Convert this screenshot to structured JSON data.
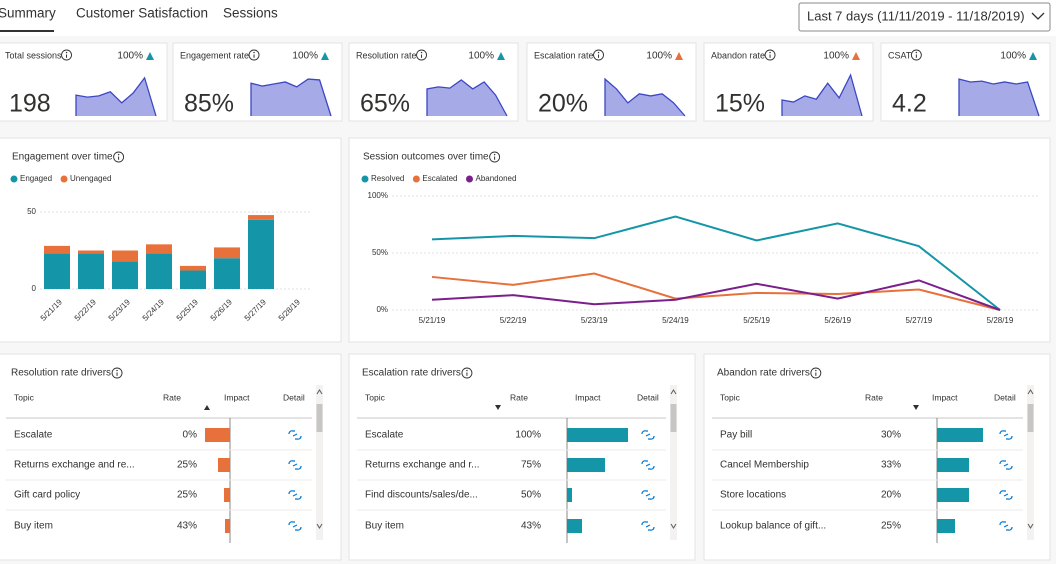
{
  "tabs": [
    "Summary",
    "Customer Satisfaction",
    "Sessions"
  ],
  "date_filter": "Last 7 days (11/11/2019 - 11/18/2019)",
  "kpis": [
    {
      "label": "Total sessions",
      "value": "198",
      "change": "100%",
      "trend_color": "#1596a8",
      "sparkline": [
        51,
        46,
        49,
        59,
        32,
        56,
        93,
        0
      ]
    },
    {
      "label": "Engagement rate",
      "value": "85%",
      "change": "100%",
      "trend_color": "#1596a8",
      "sparkline": [
        80,
        73,
        78,
        83,
        71,
        90,
        88,
        0
      ]
    },
    {
      "label": "Resolution rate",
      "value": "65%",
      "change": "100%",
      "trend_color": "#1596a8",
      "sparkline": [
        66,
        71,
        68,
        88,
        66,
        83,
        51,
        0
      ]
    },
    {
      "label": "Escalation rate",
      "value": "20%",
      "change": "100%",
      "trend_color": "#e8703a",
      "sparkline": [
        90,
        66,
        32,
        54,
        49,
        54,
        32,
        0
      ]
    },
    {
      "label": "Abandon rate",
      "value": "15%",
      "change": "100%",
      "trend_color": "#e8703a",
      "sparkline": [
        39,
        34,
        49,
        41,
        80,
        44,
        100,
        0
      ]
    },
    {
      "label": "CSAT",
      "value": "4.2",
      "change": "100%",
      "trend_color": "#1596a8",
      "sparkline": [
        90,
        83,
        85,
        78,
        83,
        78,
        83,
        0
      ]
    }
  ],
  "chart_data": [
    {
      "type": "bar",
      "stacked": true,
      "title": "Engagement over time",
      "categories": [
        "5/21/19",
        "5/22/19",
        "5/23/19",
        "5/24/19",
        "5/25/19",
        "5/26/19",
        "5/27/19",
        "5/28/19"
      ],
      "series": [
        {
          "name": "Engaged",
          "color": "#1596a8",
          "values": [
            23,
            23,
            18,
            23,
            12,
            20,
            45,
            0
          ]
        },
        {
          "name": "Unengaged",
          "color": "#e8703a",
          "values": [
            5,
            2,
            7,
            6,
            3,
            7,
            3,
            0
          ]
        }
      ],
      "ylim": [
        0,
        50
      ],
      "yticks": [
        0,
        50
      ],
      "grid": true
    },
    {
      "type": "line",
      "title": "Session outcomes over time",
      "categories": [
        "5/21/19",
        "5/22/19",
        "5/23/19",
        "5/24/19",
        "5/25/19",
        "5/26/19",
        "5/27/19",
        "5/28/19"
      ],
      "series": [
        {
          "name": "Resolved",
          "color": "#1596a8",
          "values": [
            62,
            65,
            63,
            82,
            61,
            76,
            56,
            0
          ]
        },
        {
          "name": "Escalated",
          "color": "#e8703a",
          "values": [
            29,
            22,
            32,
            10,
            15,
            14,
            18,
            0
          ]
        },
        {
          "name": "Abandoned",
          "color": "#7b1f8c",
          "values": [
            9,
            13,
            5,
            9,
            23,
            10,
            26,
            0
          ]
        }
      ],
      "ylim": [
        0,
        100
      ],
      "yticks": [
        {
          "value": 0,
          "label": "0%"
        },
        {
          "value": 50,
          "label": "50%"
        },
        {
          "value": 100,
          "label": "100%"
        }
      ],
      "grid": true
    }
  ],
  "tables": [
    {
      "title": "Resolution rate drivers",
      "columns": [
        "Topic",
        "Rate",
        "Impact",
        "Detail"
      ],
      "sort": "asc",
      "bar_color": "#e8703a",
      "rows": [
        {
          "topic": "Escalate",
          "rate": "0%",
          "impact": -25
        },
        {
          "topic": "Returns exchange and re...",
          "rate": "25%",
          "impact": -12
        },
        {
          "topic": "Gift card policy",
          "rate": "25%",
          "impact": -6
        },
        {
          "topic": "Buy item",
          "rate": "43%",
          "impact": -5
        }
      ]
    },
    {
      "title": "Escalation rate drivers",
      "columns": [
        "Topic",
        "Rate",
        "Impact",
        "Detail"
      ],
      "sort": "desc",
      "bar_color": "#1596a8",
      "rows": [
        {
          "topic": "Escalate",
          "rate": "100%",
          "impact": 61
        },
        {
          "topic": "Returns exchange and r...",
          "rate": "75%",
          "impact": 38
        },
        {
          "topic": "Find discounts/sales/de...",
          "rate": "50%",
          "impact": 5
        },
        {
          "topic": "Buy item",
          "rate": "43%",
          "impact": 15
        }
      ]
    },
    {
      "title": "Abandon rate drivers",
      "columns": [
        "Topic",
        "Rate",
        "Impact",
        "Detail"
      ],
      "sort": "desc",
      "bar_color": "#1596a8",
      "rows": [
        {
          "topic": "Pay bill",
          "rate": "30%",
          "impact": 46
        },
        {
          "topic": "Cancel Membership",
          "rate": "33%",
          "impact": 32
        },
        {
          "topic": "Store locations",
          "rate": "20%",
          "impact": 32
        },
        {
          "topic": "Lookup balance of gift...",
          "rate": "25%",
          "impact": 18
        }
      ]
    }
  ]
}
